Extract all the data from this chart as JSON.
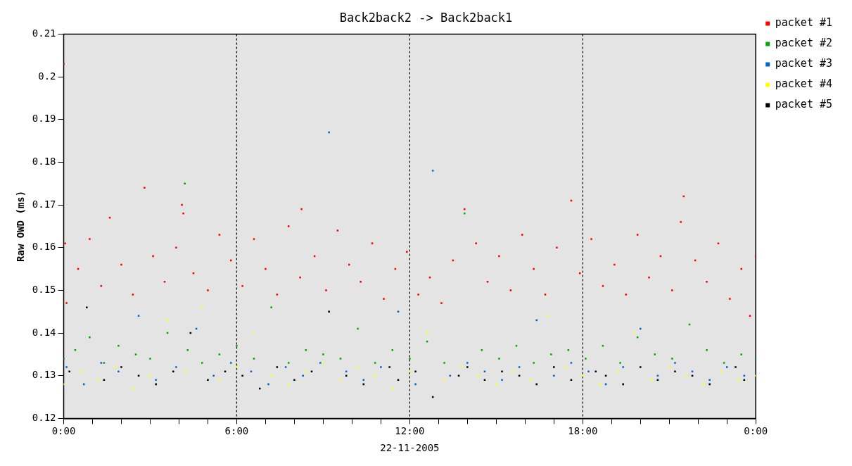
{
  "chart_data": {
    "type": "scatter",
    "title": "Back2back2 -> Back2back1",
    "xlabel": "22-11-2005",
    "ylabel": "Raw OWD (ms)",
    "xlim": [
      0,
      24
    ],
    "xticks": [
      {
        "value": 0,
        "label": "0:00"
      },
      {
        "value": 1,
        "label": null
      },
      {
        "value": 2,
        "label": null
      },
      {
        "value": 3,
        "label": null
      },
      {
        "value": 4,
        "label": null
      },
      {
        "value": 5,
        "label": null
      },
      {
        "value": 6,
        "label": "6:00"
      },
      {
        "value": 7,
        "label": null
      },
      {
        "value": 8,
        "label": null
      },
      {
        "value": 9,
        "label": null
      },
      {
        "value": 10,
        "label": null
      },
      {
        "value": 11,
        "label": null
      },
      {
        "value": 12,
        "label": "12:00"
      },
      {
        "value": 13,
        "label": null
      },
      {
        "value": 14,
        "label": null
      },
      {
        "value": 15,
        "label": null
      },
      {
        "value": 16,
        "label": null
      },
      {
        "value": 17,
        "label": null
      },
      {
        "value": 18,
        "label": "18:00"
      },
      {
        "value": 19,
        "label": null
      },
      {
        "value": 20,
        "label": null
      },
      {
        "value": 21,
        "label": null
      },
      {
        "value": 22,
        "label": null
      },
      {
        "value": 23,
        "label": null
      },
      {
        "value": 24,
        "label": "0:00"
      }
    ],
    "ylim": [
      0.12,
      0.21
    ],
    "yticks": [
      0.12,
      0.13,
      0.14,
      0.15,
      0.16,
      0.17,
      0.18,
      0.19,
      0.2,
      0.21
    ],
    "grid": "x",
    "legend": "top right",
    "marker": "square",
    "series": [
      {
        "name": "packet #1",
        "color": "#ff0000",
        "x": [
          0,
          0.05,
          0.1,
          0.5,
          0.9,
          1.3,
          1.6,
          2.0,
          2.4,
          2.8,
          3.1,
          3.5,
          3.9,
          4.1,
          4.15,
          4.5,
          5.0,
          5.4,
          5.8,
          6.2,
          6.6,
          7.0,
          7.4,
          7.8,
          8.2,
          8.25,
          8.7,
          9.1,
          9.5,
          9.9,
          10.3,
          10.7,
          11.1,
          11.5,
          11.9,
          12.3,
          12.7,
          13.1,
          13.5,
          13.9,
          14.3,
          14.7,
          15.1,
          15.5,
          15.9,
          16.3,
          16.7,
          17.1,
          17.6,
          17.9,
          18.3,
          18.7,
          19.1,
          19.5,
          19.9,
          20.3,
          20.7,
          21.1,
          21.4,
          21.5,
          21.9,
          22.3,
          22.7,
          23.1,
          23.5,
          23.8,
          24
        ],
        "values": [
          0.203,
          0.161,
          0.147,
          0.155,
          0.162,
          0.151,
          0.167,
          0.156,
          0.149,
          0.174,
          0.158,
          0.152,
          0.16,
          0.17,
          0.168,
          0.154,
          0.15,
          0.163,
          0.157,
          0.151,
          0.162,
          0.155,
          0.149,
          0.165,
          0.153,
          0.169,
          0.158,
          0.15,
          0.164,
          0.156,
          0.152,
          0.161,
          0.148,
          0.155,
          0.159,
          0.149,
          0.153,
          0.147,
          0.157,
          0.169,
          0.161,
          0.152,
          0.158,
          0.15,
          0.163,
          0.155,
          0.149,
          0.16,
          0.171,
          0.154,
          0.162,
          0.151,
          0.156,
          0.149,
          0.163,
          0.153,
          0.158,
          0.15,
          0.166,
          0.172,
          0.157,
          0.152,
          0.161,
          0.148,
          0.155,
          0.144,
          0.158
        ]
      },
      {
        "name": "packet #2",
        "color": "#00aa00",
        "x": [
          0,
          0.4,
          0.9,
          1.4,
          1.9,
          2.5,
          3.0,
          3.6,
          4.2,
          4.3,
          4.8,
          5.4,
          6.0,
          6.6,
          7.2,
          7.8,
          8.4,
          9.0,
          9.6,
          10.2,
          10.8,
          11.4,
          12.0,
          12.6,
          13.2,
          13.9,
          14.5,
          15.1,
          15.7,
          16.3,
          16.9,
          17.5,
          18.1,
          18.7,
          19.3,
          19.9,
          20.5,
          21.1,
          21.7,
          22.3,
          22.9,
          23.5,
          24
        ],
        "values": [
          0.134,
          0.136,
          0.139,
          0.133,
          0.137,
          0.135,
          0.134,
          0.14,
          0.175,
          0.136,
          0.133,
          0.135,
          0.137,
          0.134,
          0.146,
          0.133,
          0.136,
          0.135,
          0.134,
          0.141,
          0.133,
          0.136,
          0.134,
          0.138,
          0.133,
          0.168,
          0.136,
          0.134,
          0.137,
          0.133,
          0.135,
          0.136,
          0.134,
          0.137,
          0.133,
          0.139,
          0.135,
          0.134,
          0.142,
          0.136,
          0.133,
          0.135,
          0.134
        ]
      },
      {
        "name": "packet #3",
        "color": "#0066cc",
        "x": [
          0.1,
          0.7,
          1.3,
          1.9,
          2.6,
          3.2,
          3.9,
          4.6,
          5.2,
          5.8,
          6.5,
          7.1,
          7.7,
          8.3,
          8.9,
          9.2,
          9.8,
          10.4,
          11.0,
          11.6,
          12.2,
          12.8,
          13.4,
          14.0,
          14.6,
          15.2,
          15.8,
          16.4,
          17.0,
          17.6,
          18.2,
          18.8,
          19.4,
          20.0,
          20.6,
          21.2,
          21.8,
          22.4,
          23.0,
          23.6
        ],
        "values": [
          0.132,
          0.128,
          0.133,
          0.131,
          0.144,
          0.129,
          0.132,
          0.141,
          0.13,
          0.133,
          0.131,
          0.128,
          0.132,
          0.13,
          0.133,
          0.187,
          0.131,
          0.129,
          0.132,
          0.145,
          0.128,
          0.178,
          0.13,
          0.133,
          0.131,
          0.129,
          0.132,
          0.143,
          0.13,
          0.133,
          0.131,
          0.128,
          0.132,
          0.141,
          0.13,
          0.133,
          0.131,
          0.129,
          0.132,
          0.13
        ]
      },
      {
        "name": "packet #4",
        "color": "#ffff00",
        "x": [
          0,
          0.6,
          1.2,
          1.8,
          2.4,
          3.0,
          3.6,
          4.2,
          4.8,
          5.4,
          6.0,
          6.6,
          7.2,
          7.8,
          8.4,
          9.0,
          9.6,
          10.2,
          10.8,
          11.4,
          12.0,
          12.6,
          13.2,
          13.8,
          14.4,
          15.0,
          15.6,
          16.2,
          16.8,
          17.4,
          18.0,
          18.6,
          19.2,
          19.8,
          20.4,
          21.0,
          21.6,
          22.2,
          22.8,
          23.4,
          24
        ],
        "values": [
          0.128,
          0.131,
          0.129,
          0.132,
          0.127,
          0.13,
          0.143,
          0.131,
          0.146,
          0.129,
          0.132,
          0.14,
          0.13,
          0.128,
          0.131,
          0.133,
          0.129,
          0.132,
          0.13,
          0.127,
          0.131,
          0.14,
          0.129,
          0.132,
          0.13,
          0.128,
          0.131,
          0.129,
          0.144,
          0.132,
          0.13,
          0.128,
          0.131,
          0.14,
          0.129,
          0.132,
          0.13,
          0.128,
          0.131,
          0.129,
          0.13
        ]
      },
      {
        "name": "packet #5",
        "color": "#000000",
        "x": [
          0.2,
          0.8,
          1.4,
          2.0,
          2.6,
          3.2,
          3.8,
          4.4,
          5.0,
          5.6,
          6.2,
          6.8,
          7.4,
          8.0,
          8.6,
          9.2,
          9.8,
          10.4,
          11.3,
          11.6,
          12.2,
          12.8,
          13.7,
          14.0,
          14.6,
          15.2,
          15.8,
          16.4,
          17.0,
          17.6,
          18.45,
          18.8,
          19.4,
          20.0,
          20.6,
          21.2,
          21.8,
          22.4,
          23.3,
          23.6
        ],
        "values": [
          0.131,
          0.146,
          0.129,
          0.132,
          0.13,
          0.128,
          0.131,
          0.14,
          0.129,
          0.131,
          0.13,
          0.127,
          0.132,
          0.129,
          0.131,
          0.145,
          0.13,
          0.128,
          0.132,
          0.129,
          0.131,
          0.125,
          0.13,
          0.132,
          0.129,
          0.131,
          0.13,
          0.128,
          0.132,
          0.129,
          0.131,
          0.13,
          0.128,
          0.132,
          0.129,
          0.131,
          0.13,
          0.128,
          0.132,
          0.129
        ]
      }
    ]
  }
}
